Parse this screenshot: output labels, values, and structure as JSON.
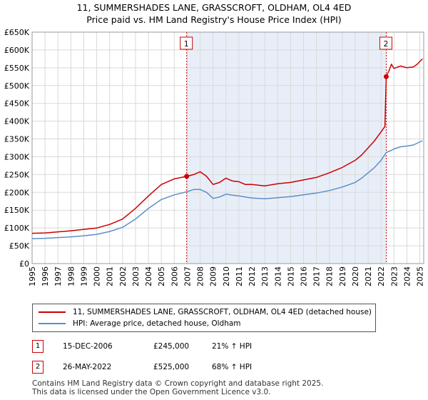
{
  "chart_data": {
    "type": "line",
    "title": "11, SUMMERSHADES LANE, GRASSCROFT, OLDHAM, OL4 4ED",
    "subtitle": "Price paid vs. HM Land Registry's House Price Index (HPI)",
    "xlabel": "",
    "ylabel": "",
    "xlim": [
      1995,
      2025.3
    ],
    "ylim": [
      0,
      650000
    ],
    "y_ticks": [
      0,
      50000,
      100000,
      150000,
      200000,
      250000,
      300000,
      350000,
      400000,
      450000,
      500000,
      550000,
      600000,
      650000
    ],
    "y_tick_labels": [
      "£0",
      "£50K",
      "£100K",
      "£150K",
      "£200K",
      "£250K",
      "£300K",
      "£350K",
      "£400K",
      "£450K",
      "£500K",
      "£550K",
      "£600K",
      "£650K"
    ],
    "x_tick_labels": [
      "1995",
      "1996",
      "1997",
      "1998",
      "1999",
      "2000",
      "2001",
      "2002",
      "2003",
      "2004",
      "2005",
      "2006",
      "2007",
      "2008",
      "2009",
      "2010",
      "2011",
      "2012",
      "2013",
      "2014",
      "2015",
      "2016",
      "2017",
      "2018",
      "2019",
      "2020",
      "2021",
      "2022",
      "2023",
      "2024",
      "2025"
    ],
    "grid": true,
    "shaded_region": [
      2006.96,
      2022.4
    ],
    "series": [
      {
        "name": "11, SUMMERSHADES LANE, GRASSCROFT, OLDHAM, OL4 4ED (detached house)",
        "color": "#cc0000",
        "x": [
          1995,
          1996,
          1997,
          1998,
          1999,
          2000,
          2001,
          2002,
          2003,
          2004,
          2005,
          2006,
          2006.96,
          2007.5,
          2008,
          2008.5,
          2009,
          2009.5,
          2010,
          2010.5,
          2011,
          2011.5,
          2012,
          2013,
          2014,
          2015,
          2016,
          2017,
          2018,
          2019,
          2020,
          2020.5,
          2021,
          2021.5,
          2022,
          2022.3,
          2022.4,
          2022.45,
          2022.6,
          2022.8,
          2023,
          2023.5,
          2024,
          2024.5,
          2024.8,
          2025.2
        ],
        "values": [
          85000,
          86000,
          89000,
          92000,
          96000,
          100000,
          110000,
          125000,
          155000,
          190000,
          222000,
          238000,
          245000,
          250000,
          258000,
          245000,
          222000,
          228000,
          240000,
          232000,
          230000,
          222000,
          222000,
          218000,
          224000,
          228000,
          235000,
          242000,
          255000,
          270000,
          290000,
          305000,
          325000,
          345000,
          370000,
          385000,
          525000,
          530000,
          540000,
          560000,
          548000,
          555000,
          550000,
          552000,
          560000,
          575000
        ]
      },
      {
        "name": "HPI: Average price, detached house, Oldham",
        "color": "#5b8fc9",
        "x": [
          1995,
          1996,
          1997,
          1998,
          1999,
          2000,
          2001,
          2002,
          2003,
          2004,
          2005,
          2006,
          2007,
          2007.5,
          2008,
          2008.5,
          2009,
          2009.5,
          2010,
          2010.5,
          2011,
          2012,
          2013,
          2014,
          2015,
          2016,
          2017,
          2018,
          2019,
          2020,
          2020.5,
          2021,
          2021.5,
          2022,
          2022.4,
          2022.8,
          2023,
          2023.5,
          2024,
          2024.5,
          2025.2
        ],
        "values": [
          70000,
          71000,
          73000,
          75000,
          78000,
          82000,
          90000,
          102000,
          125000,
          155000,
          180000,
          193000,
          202000,
          208000,
          208000,
          200000,
          183000,
          187000,
          195000,
          192000,
          190000,
          184000,
          182000,
          185000,
          188000,
          193000,
          198000,
          205000,
          215000,
          228000,
          240000,
          255000,
          270000,
          290000,
          312000,
          318000,
          322000,
          328000,
          330000,
          333000,
          345000
        ]
      }
    ],
    "markers": [
      {
        "label": "1",
        "x": 2006.96,
        "value": 245000
      },
      {
        "label": "2",
        "x": 2022.4,
        "value": 525000
      }
    ]
  },
  "legend": {
    "property_label": "11, SUMMERSHADES LANE, GRASSCROFT, OLDHAM, OL4 4ED (detached house)",
    "hpi_label": "HPI: Average price, detached house, Oldham"
  },
  "transactions": [
    {
      "num": "1",
      "date": "15-DEC-2006",
      "price": "£245,000",
      "hpi": "21% ↑ HPI"
    },
    {
      "num": "2",
      "date": "26-MAY-2022",
      "price": "£525,000",
      "hpi": "68% ↑ HPI"
    }
  ],
  "footer": {
    "line1": "Contains HM Land Registry data © Crown copyright and database right 2025.",
    "line2": "This data is licensed under the Open Government Licence v3.0."
  },
  "colors": {
    "property": "#cc0000",
    "hpi": "#5b8fc9",
    "shade": "#e8eef8",
    "grid": "#d9d9d9"
  }
}
